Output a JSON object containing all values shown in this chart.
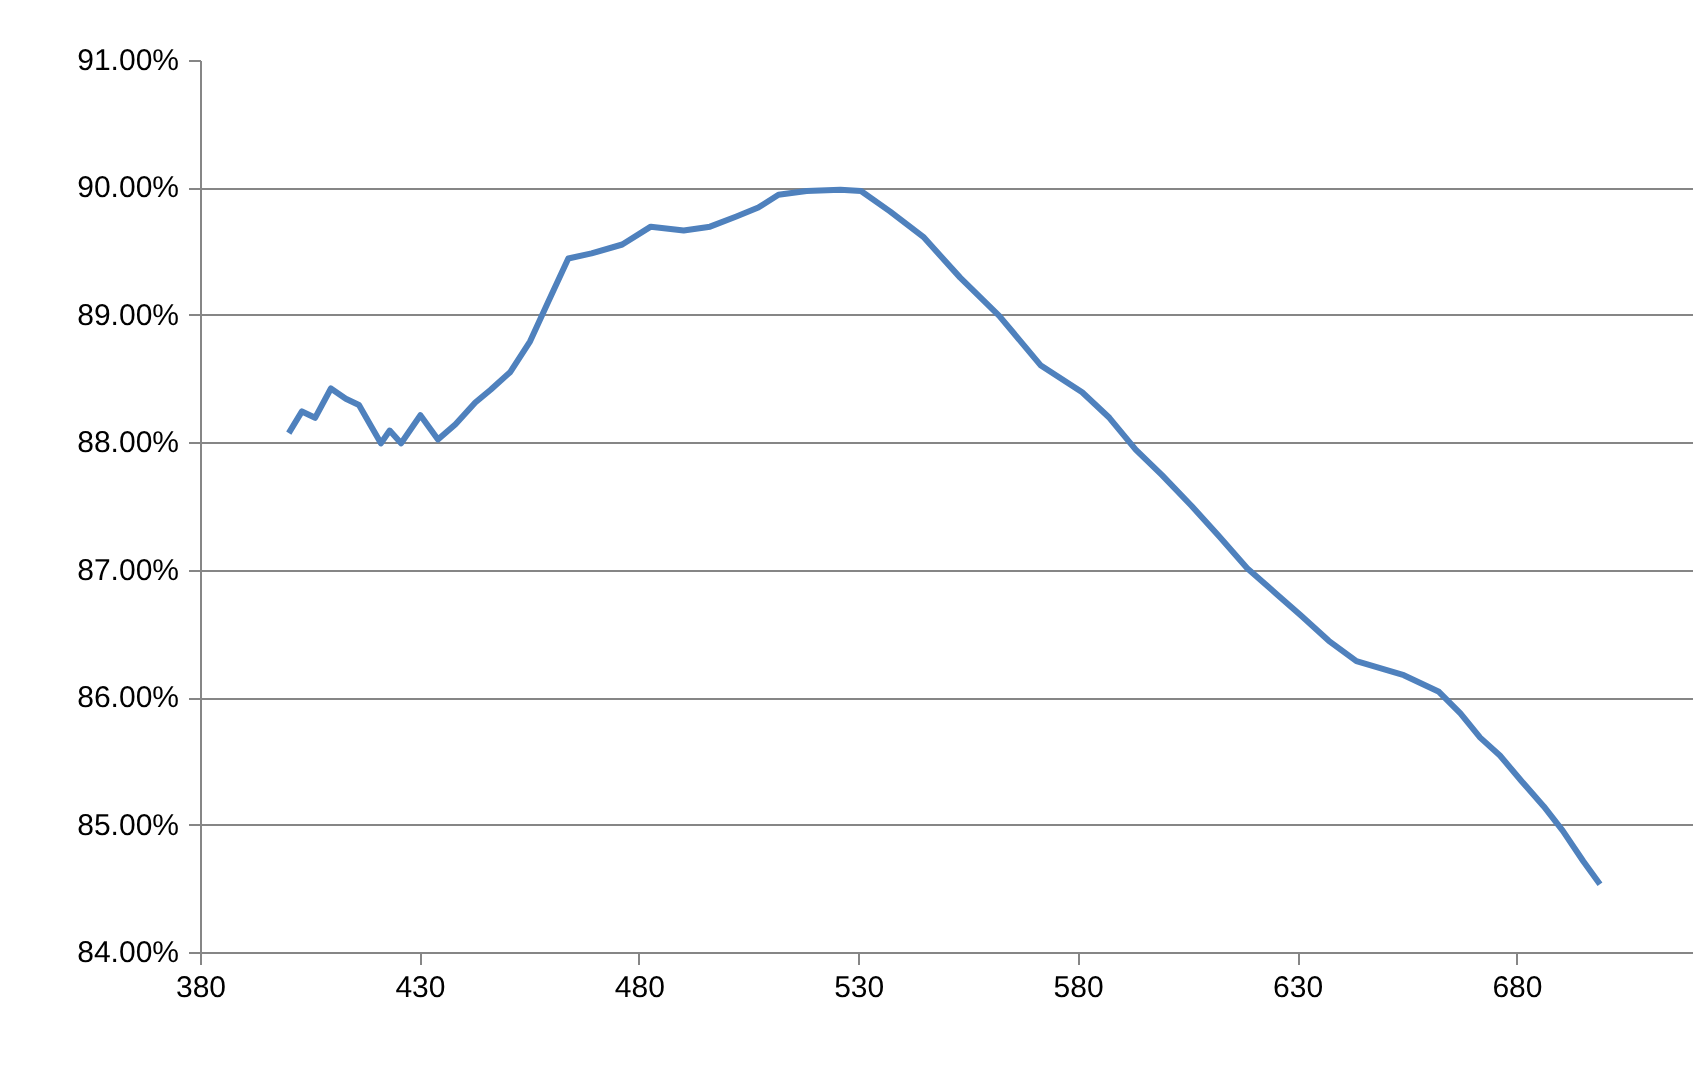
{
  "chart_data": {
    "type": "line",
    "x": [
      400,
      403,
      406,
      409.6,
      413,
      416,
      419,
      421,
      423,
      425.6,
      430,
      434,
      438,
      442.5,
      446,
      450.5,
      455,
      459,
      463.7,
      469,
      476,
      482.5,
      490,
      496,
      502,
      507,
      511.6,
      518,
      525.7,
      530.4,
      537,
      544.6,
      553,
      561.9,
      571.4,
      580.8,
      587,
      593,
      599,
      605.7,
      612,
      618.4,
      625,
      630.6,
      637,
      643.3,
      654.1,
      662.1,
      667,
      671.5,
      676,
      680.9,
      686,
      690.3,
      695,
      698.8
    ],
    "series": [
      {
        "color": "#4f81bd",
        "values": [
          88.08,
          88.25,
          88.2,
          88.43,
          88.35,
          88.3,
          88.12,
          88.0,
          88.1,
          88.0,
          88.22,
          88.03,
          88.15,
          88.32,
          88.42,
          88.56,
          88.8,
          89.1,
          89.45,
          89.49,
          89.56,
          89.7,
          89.67,
          89.7,
          89.78,
          89.85,
          89.95,
          89.98,
          89.99,
          89.98,
          89.82,
          89.62,
          89.3,
          89.0,
          88.61,
          88.4,
          88.2,
          87.95,
          87.75,
          87.51,
          87.27,
          87.02,
          86.82,
          86.65,
          86.45,
          86.29,
          86.18,
          86.05,
          85.88,
          85.69,
          85.55,
          85.35,
          85.15,
          84.96,
          84.72,
          84.54
        ]
      }
    ],
    "xlim": [
      380,
      720
    ],
    "xticks": [
      380,
      430,
      480,
      530,
      580,
      630,
      680
    ],
    "ylim": [
      84,
      91
    ],
    "yticks": [
      {
        "value": 84,
        "label": "84.00%"
      },
      {
        "value": 85,
        "label": "85.00%"
      },
      {
        "value": 86,
        "label": "86.00%"
      },
      {
        "value": 87,
        "label": "87.00%"
      },
      {
        "value": 88,
        "label": "88.00%"
      },
      {
        "value": 89,
        "label": "89.00%"
      },
      {
        "value": 90,
        "label": "90.00%"
      },
      {
        "value": 91,
        "label": "91.00%"
      }
    ],
    "grid": "y",
    "line_style": "solid"
  }
}
